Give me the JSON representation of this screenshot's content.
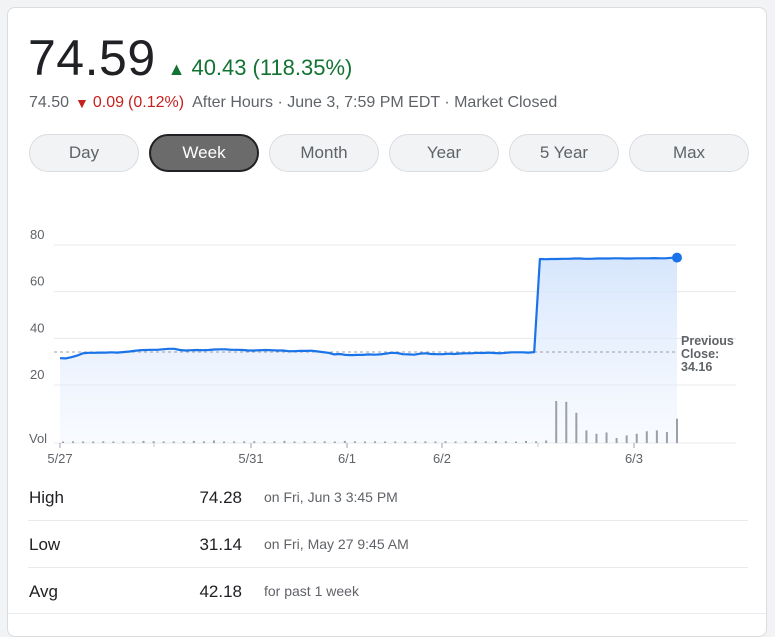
{
  "quote": {
    "price": "74.59",
    "change": "40.43",
    "change_pct": "(118.35%)",
    "direction": "up",
    "after_hours_price": "74.50",
    "after_hours_change": "0.09",
    "after_hours_pct": "(0.12%)",
    "after_hours_status": "After Hours · June 3, 7:59 PM EDT · Market Closed"
  },
  "tabs": [
    {
      "label": "Day",
      "active": false
    },
    {
      "label": "Week",
      "active": true
    },
    {
      "label": "Month",
      "active": false
    },
    {
      "label": "Year",
      "active": false
    },
    {
      "label": "5 Year",
      "active": false
    },
    {
      "label": "Max",
      "active": false
    }
  ],
  "chart_data": {
    "type": "line",
    "x_ticks": [
      "5/27",
      "5/31",
      "6/1",
      "6/2",
      "6/3"
    ],
    "y_ticks": [
      80,
      60,
      40,
      20
    ],
    "ylim": [
      14,
      86
    ],
    "vol_label": "Vol",
    "previous_close": {
      "label_line1": "Previous",
      "label_line2": "Close:",
      "value": "34.16",
      "y": 34.16
    },
    "series": [
      {
        "values": [
          31.5,
          31.4,
          31.9,
          32.6,
          33.6,
          33.8,
          33.8,
          33.9,
          33.9,
          34.0,
          33.9,
          34.1,
          34.3,
          34.6,
          34.9,
          35.0,
          35.1,
          35.1,
          35.3,
          35.5,
          35.5,
          35.0,
          34.8,
          34.9,
          35.0,
          34.9,
          35.0,
          35.2,
          35.3,
          35.3,
          35.1,
          35.1,
          35.0,
          34.8,
          34.8,
          34.9,
          35.0,
          34.9,
          34.8,
          34.8,
          34.5,
          34.5,
          34.6,
          34.6,
          34.7,
          34.4,
          34.1,
          33.8,
          33.1,
          33.3,
          32.9,
          32.8,
          32.9,
          32.9,
          33.1,
          33.0,
          33.1,
          33.4,
          33.8,
          33.7,
          33.2,
          33.1,
          33.0,
          33.4,
          33.6,
          33.3,
          33.2,
          33.2,
          33.4,
          33.3,
          33.5,
          33.6,
          33.6,
          33.8,
          33.7,
          33.9,
          33.7,
          33.6,
          33.8,
          34.0,
          34.0,
          34.0,
          33.9,
          34.1,
          74.0,
          73.9,
          74.0,
          74.0,
          74.1,
          74.1,
          74.2,
          74.2,
          74.1,
          74.1,
          74.2,
          74.2,
          74.2,
          74.3,
          74.3,
          74.2,
          74.2,
          74.3,
          74.3,
          74.3,
          74.4,
          74.3,
          74.3,
          74.5,
          74.6
        ],
        "color": "#1a73e8"
      }
    ],
    "volume_relative": [
      0.03,
      0.04,
      0.02,
      0.03,
      0.04,
      0.03,
      0.02,
      0.03,
      0.05,
      0.04,
      0.03,
      0.03,
      0.04,
      0.05,
      0.04,
      0.06,
      0.03,
      0.03,
      0.04,
      0.04,
      0.03,
      0.04,
      0.05,
      0.03,
      0.04,
      0.04,
      0.04,
      0.03,
      0.05,
      0.04,
      0.03,
      0.04,
      0.03,
      0.03,
      0.03,
      0.04,
      0.04,
      0.03,
      0.04,
      0.02,
      0.04,
      0.05,
      0.04,
      0.05,
      0.04,
      0.03,
      0.05,
      0.04,
      0.06,
      1.0,
      0.98,
      0.72,
      0.3,
      0.22,
      0.25,
      0.12,
      0.18,
      0.22,
      0.28,
      0.3,
      0.26,
      0.58
    ],
    "line_color": "#1a73e8",
    "fill_color": "#e8f0fe"
  },
  "stats": [
    {
      "label": "High",
      "value": "74.28",
      "note": "on Fri, Jun 3 3:45 PM"
    },
    {
      "label": "Low",
      "value": "31.14",
      "note": "on Fri, May 27 9:45 AM"
    },
    {
      "label": "Avg",
      "value": "42.18",
      "note": "for past 1 week"
    }
  ]
}
